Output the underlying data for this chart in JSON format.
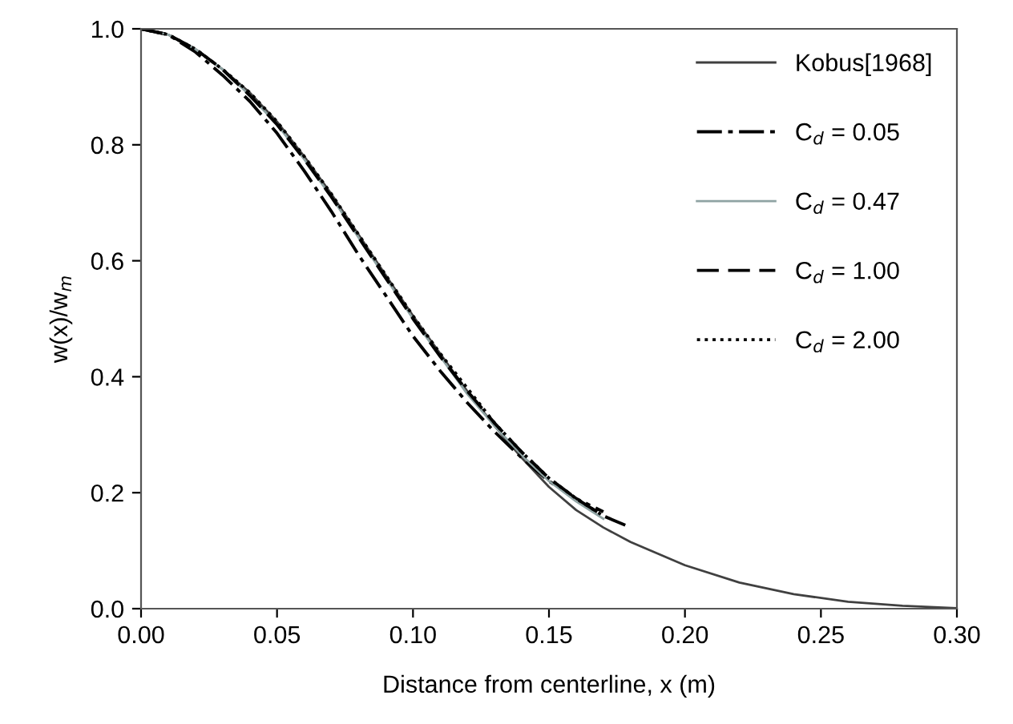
{
  "chart_data": {
    "type": "line",
    "xlabel": "Distance from centerline, x (m)",
    "ylabel": "w(x)/w$_{m}$",
    "xlim": [
      0,
      0.3
    ],
    "ylim": [
      0,
      1
    ],
    "xticks": [
      {
        "value": 0,
        "label": "0.00"
      },
      {
        "value": 0.05,
        "label": "0.05"
      },
      {
        "value": 0.1,
        "label": "0.10"
      },
      {
        "value": 0.15,
        "label": "0.15"
      },
      {
        "value": 0.2,
        "label": "0.20"
      },
      {
        "value": 0.25,
        "label": "0.25"
      },
      {
        "value": 0.3,
        "label": "0.30"
      }
    ],
    "yticks": [
      {
        "value": 0,
        "label": "0.0"
      },
      {
        "value": 0.2,
        "label": "0.2"
      },
      {
        "value": 0.4,
        "label": "0.4"
      },
      {
        "value": 0.6,
        "label": "0.6"
      },
      {
        "value": 0.8,
        "label": "0.8"
      },
      {
        "value": 1,
        "label": "1.0"
      }
    ],
    "grid": false,
    "legend": "top right",
    "marker": "none",
    "series": [
      {
        "name": "Kobus[1968]",
        "color": "#404040",
        "line_style": "solid",
        "x": [
          0,
          0.01,
          0.02,
          0.03,
          0.04,
          0.05,
          0.06,
          0.07,
          0.08,
          0.09,
          0.1,
          0.11,
          0.12,
          0.13,
          0.14,
          0.15,
          0.16,
          0.17,
          0.18,
          0.19,
          0.2,
          0.22,
          0.24,
          0.26,
          0.28,
          0.3
        ],
        "values": [
          1,
          0.99,
          0.965,
          0.93,
          0.89,
          0.84,
          0.78,
          0.715,
          0.645,
          0.575,
          0.505,
          0.44,
          0.375,
          0.315,
          0.26,
          0.21,
          0.17,
          0.14,
          0.115,
          0.095,
          0.075,
          0.045,
          0.025,
          0.012,
          0.005,
          0.001
        ]
      },
      {
        "name": "C$_{d}$ = 0.05",
        "color": "#000000",
        "line_style": "dashdot",
        "x": [
          0,
          0.01,
          0.02,
          0.03,
          0.04,
          0.05,
          0.06,
          0.07,
          0.08,
          0.09,
          0.1,
          0.11,
          0.12,
          0.13,
          0.14,
          0.15,
          0.16,
          0.17
        ],
        "values": [
          1,
          0.99,
          0.96,
          0.92,
          0.875,
          0.82,
          0.755,
          0.685,
          0.61,
          0.54,
          0.47,
          0.41,
          0.355,
          0.305,
          0.26,
          0.22,
          0.19,
          0.167
        ]
      },
      {
        "name": "C$_{d}$ = 0.47",
        "color": "#8fa3a3",
        "line_style": "solid",
        "x": [
          0,
          0.01,
          0.02,
          0.03,
          0.04,
          0.05,
          0.06,
          0.07,
          0.08,
          0.09,
          0.1,
          0.11,
          0.12,
          0.13,
          0.14,
          0.15,
          0.16,
          0.17
        ],
        "values": [
          1,
          0.99,
          0.965,
          0.93,
          0.885,
          0.835,
          0.775,
          0.71,
          0.64,
          0.57,
          0.5,
          0.435,
          0.37,
          0.315,
          0.265,
          0.22,
          0.185,
          0.155
        ]
      },
      {
        "name": "C$_{d}$ = 1.00",
        "color": "#000000",
        "line_style": "dashed",
        "x": [
          0,
          0.01,
          0.02,
          0.03,
          0.04,
          0.05,
          0.06,
          0.07,
          0.08,
          0.09,
          0.1,
          0.11,
          0.12,
          0.13,
          0.14,
          0.15,
          0.16,
          0.17,
          0.18
        ],
        "values": [
          1,
          0.99,
          0.965,
          0.93,
          0.885,
          0.835,
          0.775,
          0.71,
          0.64,
          0.57,
          0.5,
          0.435,
          0.375,
          0.32,
          0.27,
          0.225,
          0.19,
          0.16,
          0.14
        ]
      },
      {
        "name": "C$_{d}$ = 2.00",
        "color": "#000000",
        "line_style": "dotted",
        "x": [
          0,
          0.01,
          0.02,
          0.03,
          0.04,
          0.05,
          0.06,
          0.07,
          0.08,
          0.09,
          0.1,
          0.11,
          0.12,
          0.13,
          0.14,
          0.15,
          0.16,
          0.17
        ],
        "values": [
          1,
          0.99,
          0.965,
          0.93,
          0.89,
          0.84,
          0.78,
          0.715,
          0.645,
          0.575,
          0.505,
          0.44,
          0.38,
          0.32,
          0.27,
          0.225,
          0.19,
          0.16
        ]
      }
    ]
  }
}
